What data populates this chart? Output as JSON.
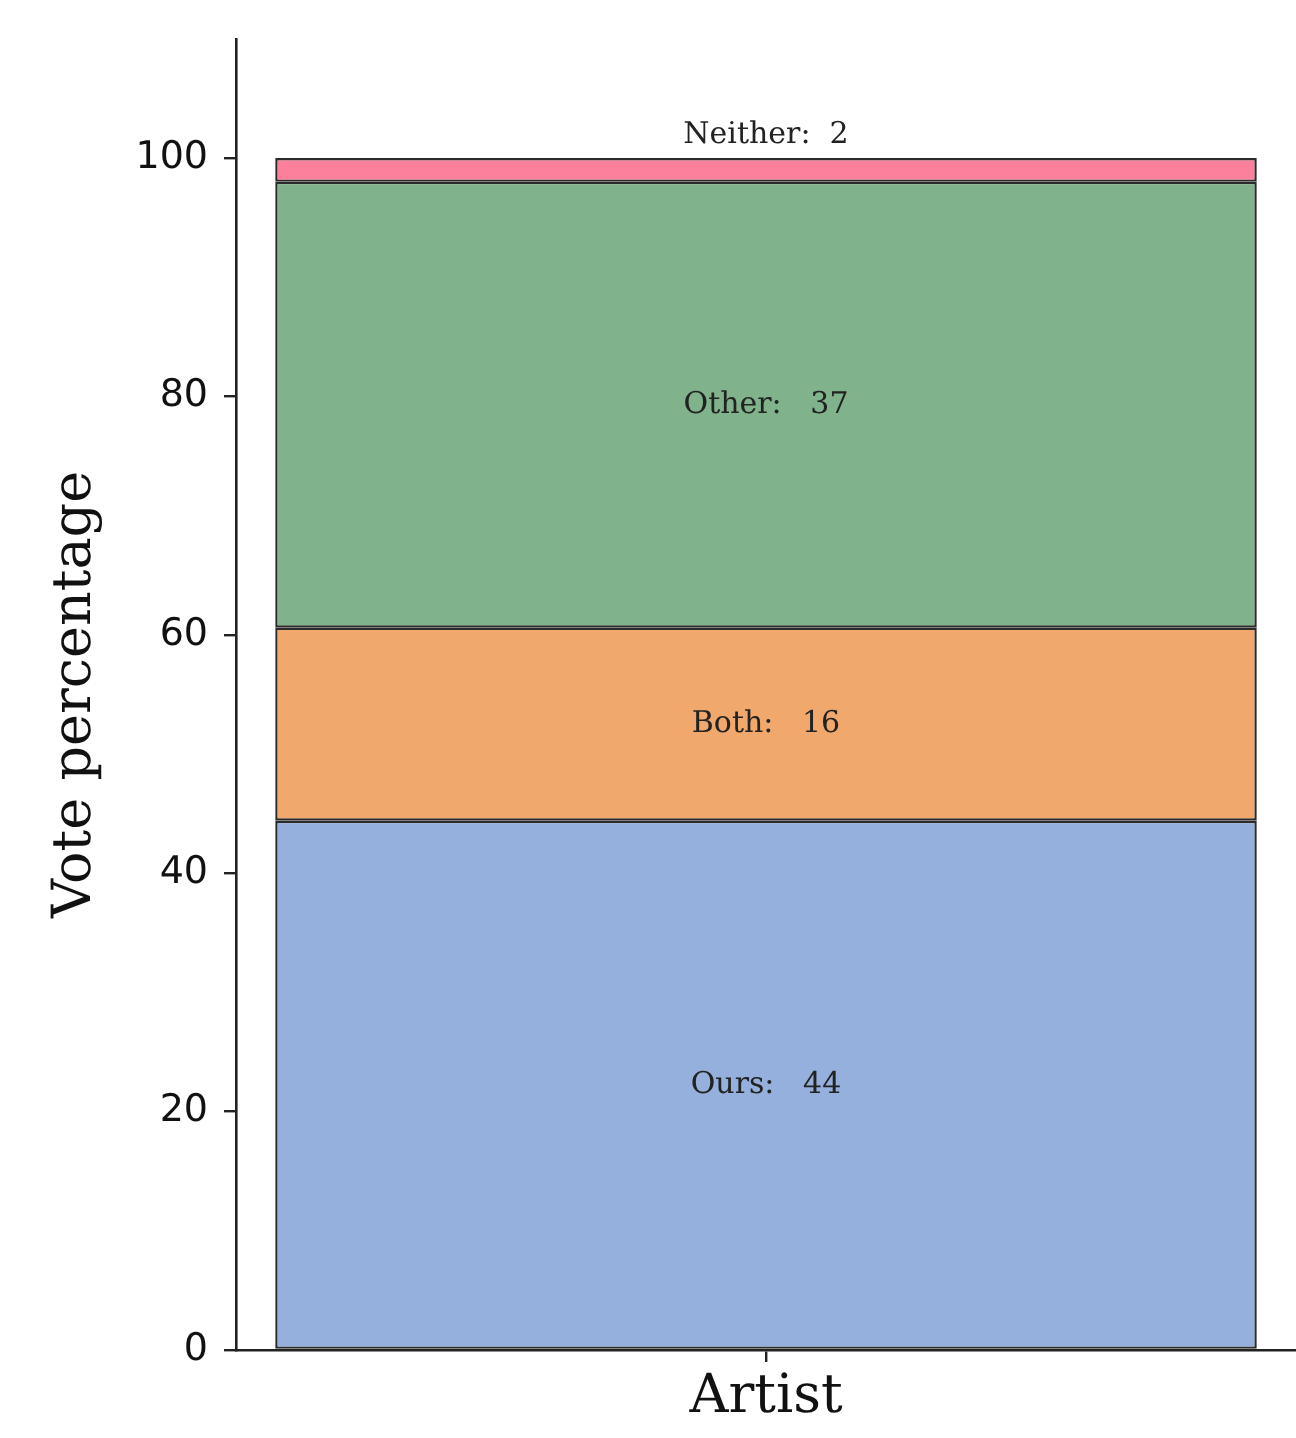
{
  "chart_data": {
    "type": "bar",
    "stacked": true,
    "ylabel": "Vote percentage",
    "categories": [
      "Artist"
    ],
    "series": [
      {
        "color": "#95b0dc",
        "values": [
          44.4
        ],
        "value_labels": [
          "Ours:   44"
        ]
      },
      {
        "color": "#f0a86c",
        "values": [
          16.2
        ],
        "value_labels": [
          "Both:   16"
        ]
      },
      {
        "color": "#80b38b",
        "values": [
          37.4
        ],
        "value_labels": [
          "Other:   37"
        ]
      },
      {
        "color": "#fc7f9b",
        "values": [
          2.0
        ],
        "value_labels": [
          "Neither:  2"
        ]
      }
    ],
    "ylim": [
      0,
      110
    ],
    "yticks": [
      0,
      20,
      40,
      60,
      80,
      100
    ],
    "grid": false,
    "legend": false
  }
}
